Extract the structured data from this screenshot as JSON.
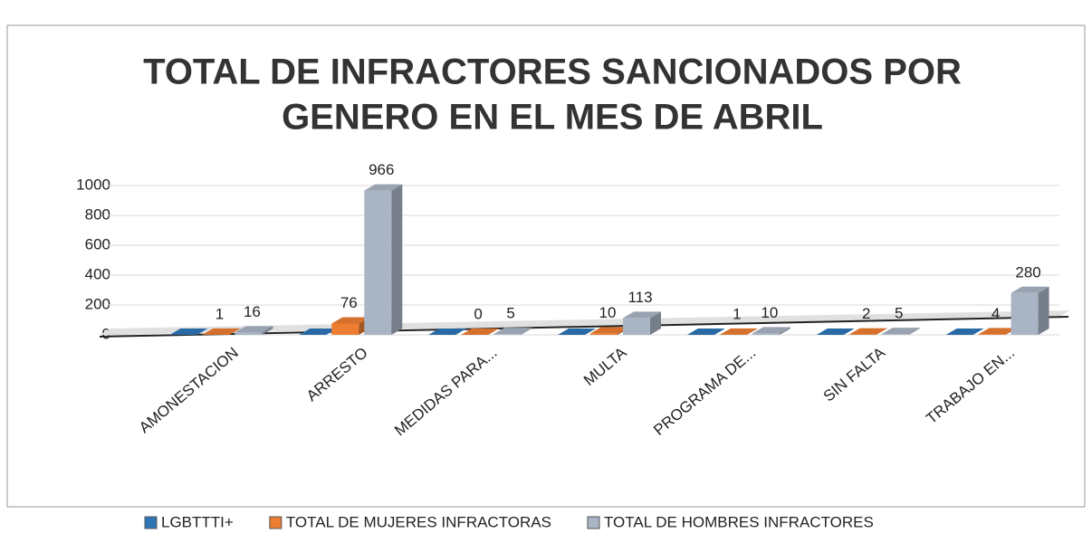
{
  "chart_data": {
    "type": "bar3d",
    "title": [
      "TOTAL DE INFRACTORES SANCIONADOS POR",
      "GENERO EN EL MES DE ABRIL"
    ],
    "categories": [
      "AMONESTACION",
      "ARRESTO",
      "MEDIDAS PARA...",
      "MULTA",
      "PROGRAMA DE...",
      "SIN FALTA",
      "TRABAJO EN..."
    ],
    "series": [
      {
        "name": "LGBTTTI+",
        "color": "#2e75b6",
        "data_labels": false,
        "values": [
          0,
          0,
          0,
          0,
          0,
          0,
          0
        ]
      },
      {
        "name": "TOTAL DE MUJERES INFRACTORAS",
        "color": "#ed7d31",
        "data_labels": true,
        "values": [
          1,
          76,
          0,
          10,
          1,
          2,
          4
        ]
      },
      {
        "name": "TOTAL DE HOMBRES INFRACTORES",
        "color": "#a9b4c4",
        "data_labels": true,
        "values": [
          16,
          966,
          5,
          113,
          10,
          5,
          280
        ]
      }
    ],
    "ylim": [
      0,
      1000
    ],
    "yticks": [
      0,
      200,
      400,
      600,
      800,
      1000
    ],
    "grid": true,
    "legend": "bottom"
  }
}
